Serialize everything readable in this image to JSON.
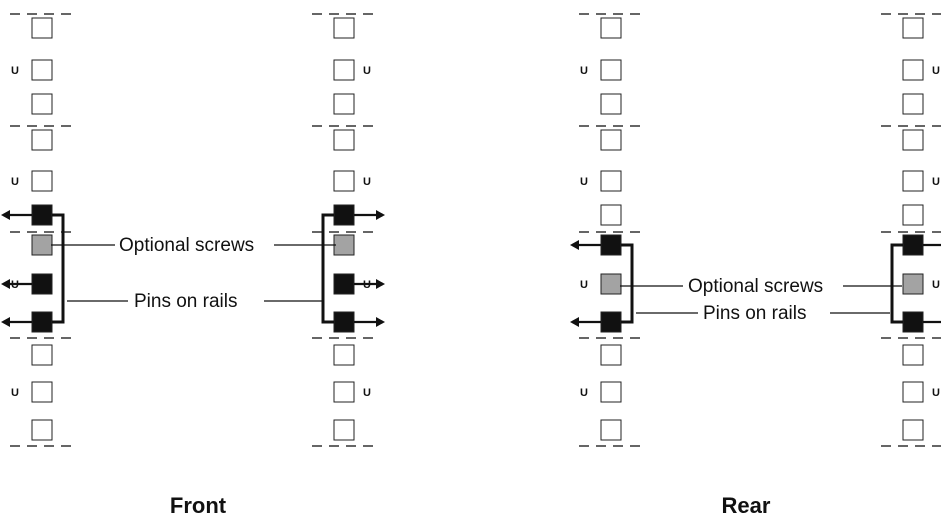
{
  "unit_label": "U",
  "panels": [
    {
      "caption": "Front",
      "callouts": {
        "screws": "Optional screws",
        "pins": "Pins on rails"
      }
    },
    {
      "caption": "Rear",
      "callouts": {
        "screws": "Optional screws",
        "pins": "Pins on rails"
      }
    }
  ],
  "colors": {
    "hole_empty": "#ffffff",
    "pin": "#111111",
    "screw": "#a3a3a3",
    "line": "#111111",
    "dash": "#333333"
  },
  "icons": {
    "pin": "filled-square-icon",
    "screw": "gray-square-icon",
    "hole": "open-square-icon",
    "arrow": "arrow-icon"
  }
}
